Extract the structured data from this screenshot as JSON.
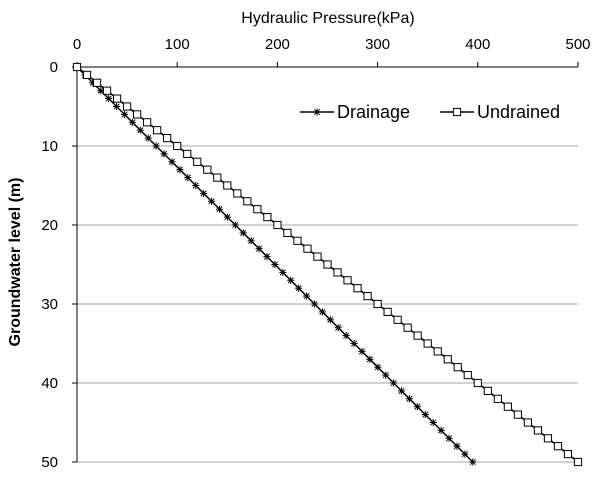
{
  "chart_data": {
    "type": "line",
    "title": "",
    "xlabel": "Hydraulic Pressure(kPa)",
    "ylabel": "Groundwater  level (m)",
    "x_axis_position": "top",
    "y_axis_inverted": true,
    "xlim": [
      0,
      500
    ],
    "ylim": [
      0,
      50
    ],
    "x_ticks": [
      "0",
      "100",
      "200",
      "300",
      "400",
      "500"
    ],
    "y_ticks": [
      "0",
      "10",
      "20",
      "30",
      "40",
      "50"
    ],
    "grid": "horizontal",
    "legend_position": "top-right",
    "series": [
      {
        "name": "Drainage",
        "marker": "asterisk",
        "color": "#000000",
        "depth_start": 0,
        "depth_end": 50,
        "depth_step": 1,
        "pressure_per_m": 7.9
      },
      {
        "name": "Undrained",
        "marker": "square",
        "color": "#000000",
        "depth_start": 0,
        "depth_end": 50,
        "depth_step": 1,
        "pressure_per_m": 10
      }
    ]
  }
}
